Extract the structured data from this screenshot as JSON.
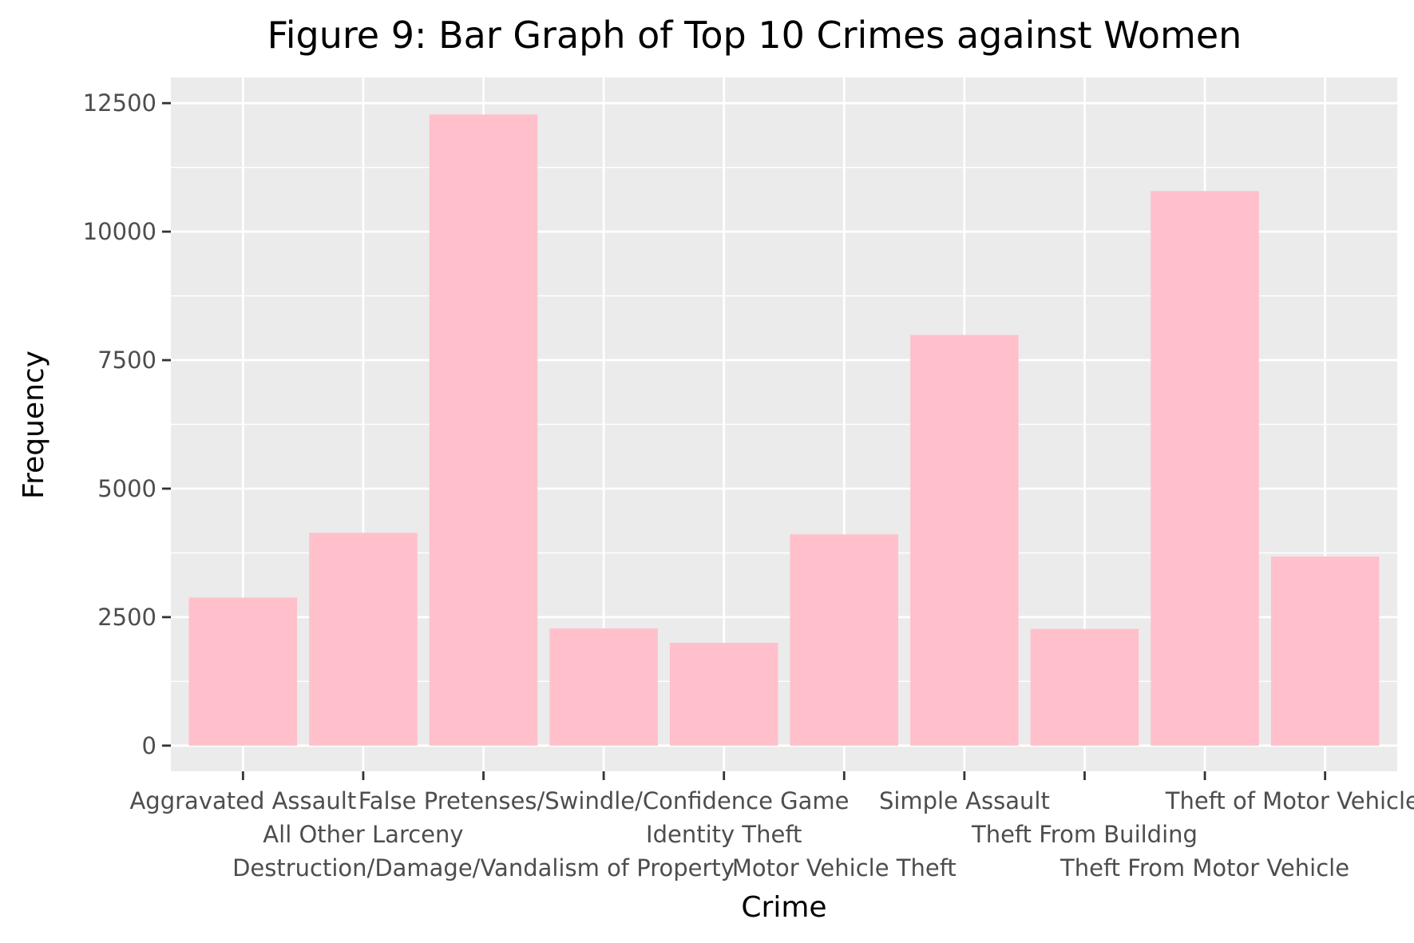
{
  "chart_data": {
    "type": "bar",
    "title": "Figure 9: Bar Graph of Top 10 Crimes against Women",
    "xlabel": "Crime",
    "ylabel": "Frequency",
    "categories": [
      "Aggravated Assault",
      "All Other Larceny",
      "Destruction/Damage/Vandalism of Property",
      "False Pretenses/Swindle/Confidence Game",
      "Identity Theft",
      "Motor Vehicle Theft",
      "Simple Assault",
      "Theft From Building",
      "Theft From Motor Vehicle",
      "Theft of Motor Vehicle Parts"
    ],
    "values": [
      2880,
      4140,
      12280,
      2280,
      2000,
      4110,
      7990,
      2270,
      10790,
      3680
    ],
    "yticks": [
      0,
      2500,
      5000,
      7500,
      10000,
      12500
    ],
    "ylim": [
      -500,
      13000
    ],
    "grid": true,
    "legend": "none",
    "colors": {
      "bar": "#FFC0CB",
      "panel": "#EBEBEB",
      "grid": "#FFFFFF"
    }
  }
}
